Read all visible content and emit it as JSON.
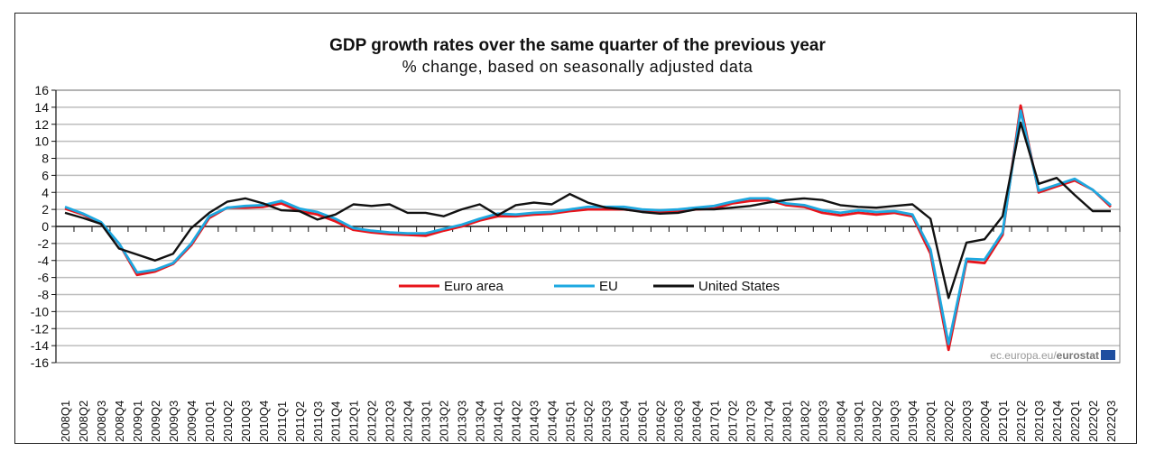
{
  "chart_data": {
    "type": "line",
    "title": "GDP growth rates over the same quarter of the previous year",
    "subtitle": "% change, based on seasonally adjusted data",
    "xlabel": "",
    "ylabel": "",
    "ylim": [
      -16,
      16
    ],
    "yticks": [
      16,
      14,
      12,
      10,
      8,
      6,
      4,
      2,
      0,
      -2,
      -4,
      -6,
      -8,
      -10,
      -12,
      -14,
      -16
    ],
    "grid": true,
    "legend_position": "center",
    "credit": "ec.europa.eu/",
    "credit_bold": "eurostat",
    "x": [
      "2008Q1",
      "2008Q2",
      "2008Q3",
      "2008Q4",
      "2009Q1",
      "2009Q2",
      "2009Q3",
      "2009Q4",
      "2010Q1",
      "2010Q2",
      "2010Q3",
      "2010Q4",
      "2011Q1",
      "2011Q2",
      "2011Q3",
      "2011Q4",
      "2012Q1",
      "2012Q2",
      "2012Q3",
      "2012Q4",
      "2013Q1",
      "2013Q2",
      "2013Q3",
      "2013Q4",
      "2014Q1",
      "2014Q2",
      "2014Q3",
      "2014Q4",
      "2015Q1",
      "2015Q2",
      "2015Q3",
      "2015Q4",
      "2016Q1",
      "2016Q2",
      "2016Q3",
      "2016Q4",
      "2017Q1",
      "2017Q2",
      "2017Q3",
      "2017Q4",
      "2018Q1",
      "2018Q2",
      "2018Q3",
      "2018Q4",
      "2019Q1",
      "2019Q2",
      "2019Q3",
      "2019Q4",
      "2020Q1",
      "2020Q2",
      "2020Q3",
      "2020Q4",
      "2021Q1",
      "2021Q2",
      "2021Q3",
      "2021Q4",
      "2022Q1",
      "2022Q2",
      "2022Q3"
    ],
    "series": [
      {
        "name": "Euro area",
        "color": "#e8141b",
        "values": [
          2.1,
          1.4,
          0.3,
          -2.0,
          -5.7,
          -5.3,
          -4.4,
          -2.2,
          1.0,
          2.2,
          2.2,
          2.3,
          2.7,
          1.8,
          1.4,
          0.6,
          -0.4,
          -0.7,
          -0.9,
          -1.0,
          -1.1,
          -0.5,
          0.0,
          0.7,
          1.2,
          1.2,
          1.4,
          1.5,
          1.8,
          2.0,
          2.0,
          2.0,
          1.8,
          1.7,
          1.8,
          2.0,
          2.1,
          2.7,
          3.0,
          3.1,
          2.5,
          2.3,
          1.6,
          1.3,
          1.6,
          1.4,
          1.6,
          1.2,
          -3.2,
          -14.5,
          -4.1,
          -4.3,
          -1.0,
          14.2,
          4.0,
          4.7,
          5.4,
          4.3,
          2.3
        ]
      },
      {
        "name": "EU",
        "color": "#1da8e0",
        "values": [
          2.3,
          1.5,
          0.5,
          -2.0,
          -5.4,
          -5.1,
          -4.3,
          -2.0,
          1.2,
          2.2,
          2.4,
          2.5,
          3.0,
          2.1,
          1.7,
          0.9,
          -0.2,
          -0.5,
          -0.7,
          -0.8,
          -0.8,
          -0.3,
          0.2,
          0.9,
          1.5,
          1.4,
          1.6,
          1.7,
          2.0,
          2.3,
          2.3,
          2.3,
          2.0,
          1.9,
          2.0,
          2.2,
          2.4,
          2.9,
          3.3,
          3.3,
          2.7,
          2.5,
          1.9,
          1.6,
          1.9,
          1.7,
          1.8,
          1.4,
          -2.7,
          -13.8,
          -3.8,
          -3.9,
          -0.7,
          13.6,
          4.2,
          4.9,
          5.6,
          4.3,
          2.5
        ]
      },
      {
        "name": "United States",
        "color": "#111111",
        "values": [
          1.6,
          1.0,
          0.3,
          -2.6,
          -3.3,
          -4.0,
          -3.2,
          -0.2,
          1.6,
          2.9,
          3.3,
          2.7,
          1.9,
          1.8,
          0.8,
          1.4,
          2.6,
          2.4,
          2.6,
          1.6,
          1.6,
          1.2,
          2.0,
          2.6,
          1.3,
          2.5,
          2.8,
          2.6,
          3.8,
          2.8,
          2.2,
          2.0,
          1.7,
          1.5,
          1.6,
          2.0,
          2.0,
          2.2,
          2.4,
          2.8,
          3.1,
          3.3,
          3.1,
          2.5,
          2.3,
          2.2,
          2.4,
          2.6,
          0.9,
          -8.4,
          -1.9,
          -1.5,
          1.2,
          12.2,
          5.0,
          5.7,
          3.7,
          1.8,
          1.8
        ]
      }
    ]
  }
}
